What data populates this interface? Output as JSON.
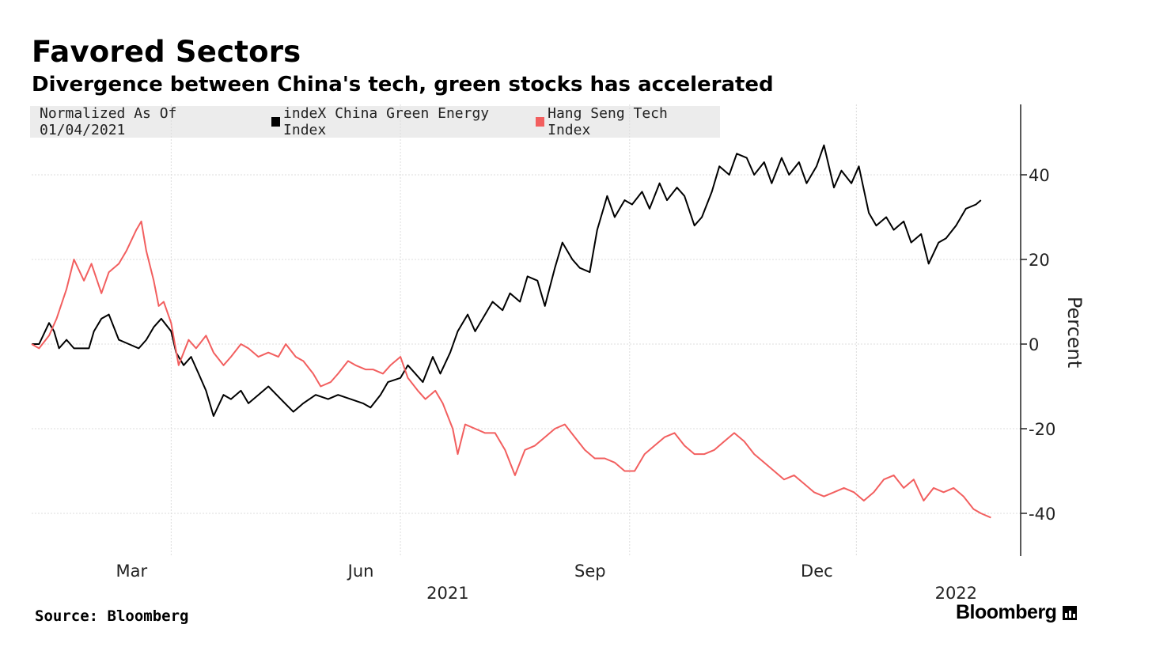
{
  "header": {
    "title": "Favored Sectors",
    "subtitle": "Divergence between China's tech, green stocks has accelerated"
  },
  "legend": {
    "note": "Normalized As Of 01/04/2021",
    "items": [
      {
        "label": "indeX China Green Energy Index",
        "color": "#000000"
      },
      {
        "label": "Hang Seng Tech Index",
        "color": "#f25f5f"
      }
    ]
  },
  "footer": {
    "source": "Source: Bloomberg",
    "brand": "Bloomberg"
  },
  "chart_data": {
    "type": "line",
    "ylabel": "Percent",
    "ylim": [
      -50,
      53
    ],
    "yticks": [
      40,
      20,
      0,
      -20,
      -40
    ],
    "ytick_labels": [
      "40",
      "20",
      "0",
      "-20",
      "-40"
    ],
    "x_range": [
      "2021-01-04",
      "2022-01-28"
    ],
    "xticks": [
      {
        "label": "Mar",
        "date": "2021-03-01"
      },
      {
        "label": "Jun",
        "date": "2021-06-01"
      },
      {
        "label": "Sep",
        "date": "2021-09-01"
      },
      {
        "label": "Dec",
        "date": "2021-12-01"
      }
    ],
    "year_labels": [
      {
        "label": "2021",
        "date": "2021-06-20"
      },
      {
        "label": "2022",
        "date": "2022-01-10"
      }
    ],
    "grid": true,
    "legend_position": "top-left",
    "series": [
      {
        "name": "indeX China Green Energy Index",
        "color": "#000000",
        "points": [
          [
            "2021-01-04",
            0
          ],
          [
            "2021-01-07",
            0
          ],
          [
            "2021-01-11",
            5
          ],
          [
            "2021-01-13",
            3
          ],
          [
            "2021-01-15",
            -1
          ],
          [
            "2021-01-18",
            1
          ],
          [
            "2021-01-21",
            -1
          ],
          [
            "2021-01-27",
            -1
          ],
          [
            "2021-01-29",
            3
          ],
          [
            "2021-02-01",
            6
          ],
          [
            "2021-02-04",
            7
          ],
          [
            "2021-02-08",
            1
          ],
          [
            "2021-02-12",
            0
          ],
          [
            "2021-02-16",
            -1
          ],
          [
            "2021-02-19",
            1
          ],
          [
            "2021-02-22",
            4
          ],
          [
            "2021-02-25",
            6
          ],
          [
            "2021-03-01",
            3
          ],
          [
            "2021-03-03",
            -2
          ],
          [
            "2021-03-06",
            -5
          ],
          [
            "2021-03-09",
            -3
          ],
          [
            "2021-03-12",
            -7
          ],
          [
            "2021-03-15",
            -11
          ],
          [
            "2021-03-18",
            -17
          ],
          [
            "2021-03-22",
            -12
          ],
          [
            "2021-03-25",
            -13
          ],
          [
            "2021-03-29",
            -11
          ],
          [
            "2021-04-01",
            -14
          ],
          [
            "2021-04-05",
            -12
          ],
          [
            "2021-04-09",
            -10
          ],
          [
            "2021-04-14",
            -13
          ],
          [
            "2021-04-19",
            -16
          ],
          [
            "2021-04-23",
            -14
          ],
          [
            "2021-04-28",
            -12
          ],
          [
            "2021-05-03",
            -13
          ],
          [
            "2021-05-07",
            -12
          ],
          [
            "2021-05-12",
            -13
          ],
          [
            "2021-05-17",
            -14
          ],
          [
            "2021-05-20",
            -15
          ],
          [
            "2021-05-24",
            -12
          ],
          [
            "2021-05-27",
            -9
          ],
          [
            "2021-06-01",
            -8
          ],
          [
            "2021-06-04",
            -5
          ],
          [
            "2021-06-07",
            -7
          ],
          [
            "2021-06-10",
            -9
          ],
          [
            "2021-06-14",
            -3
          ],
          [
            "2021-06-17",
            -7
          ],
          [
            "2021-06-21",
            -2
          ],
          [
            "2021-06-24",
            3
          ],
          [
            "2021-06-28",
            7
          ],
          [
            "2021-07-01",
            3
          ],
          [
            "2021-07-05",
            7
          ],
          [
            "2021-07-08",
            10
          ],
          [
            "2021-07-12",
            8
          ],
          [
            "2021-07-15",
            12
          ],
          [
            "2021-07-19",
            10
          ],
          [
            "2021-07-22",
            16
          ],
          [
            "2021-07-26",
            15
          ],
          [
            "2021-07-29",
            9
          ],
          [
            "2021-08-02",
            18
          ],
          [
            "2021-08-05",
            24
          ],
          [
            "2021-08-09",
            20
          ],
          [
            "2021-08-12",
            18
          ],
          [
            "2021-08-16",
            17
          ],
          [
            "2021-08-19",
            27
          ],
          [
            "2021-08-23",
            35
          ],
          [
            "2021-08-26",
            30
          ],
          [
            "2021-08-30",
            34
          ],
          [
            "2021-09-02",
            33
          ],
          [
            "2021-09-06",
            36
          ],
          [
            "2021-09-09",
            32
          ],
          [
            "2021-09-13",
            38
          ],
          [
            "2021-09-16",
            34
          ],
          [
            "2021-09-20",
            37
          ],
          [
            "2021-09-23",
            35
          ],
          [
            "2021-09-27",
            28
          ],
          [
            "2021-09-30",
            30
          ],
          [
            "2021-10-04",
            36
          ],
          [
            "2021-10-07",
            42
          ],
          [
            "2021-10-11",
            40
          ],
          [
            "2021-10-14",
            45
          ],
          [
            "2021-10-18",
            44
          ],
          [
            "2021-10-21",
            40
          ],
          [
            "2021-10-25",
            43
          ],
          [
            "2021-10-28",
            38
          ],
          [
            "2021-11-01",
            44
          ],
          [
            "2021-11-04",
            40
          ],
          [
            "2021-11-08",
            43
          ],
          [
            "2021-11-11",
            38
          ],
          [
            "2021-11-15",
            42
          ],
          [
            "2021-11-18",
            47
          ],
          [
            "2021-11-22",
            37
          ],
          [
            "2021-11-25",
            41
          ],
          [
            "2021-11-29",
            38
          ],
          [
            "2021-12-02",
            42
          ],
          [
            "2021-12-06",
            31
          ],
          [
            "2021-12-09",
            28
          ],
          [
            "2021-12-13",
            30
          ],
          [
            "2021-12-16",
            27
          ],
          [
            "2021-12-20",
            29
          ],
          [
            "2021-12-23",
            24
          ],
          [
            "2021-12-27",
            26
          ],
          [
            "2021-12-30",
            19
          ],
          [
            "2022-01-03",
            24
          ],
          [
            "2022-01-06",
            25
          ],
          [
            "2022-01-10",
            28
          ],
          [
            "2022-01-14",
            32
          ],
          [
            "2022-01-18",
            33
          ],
          [
            "2022-01-20",
            34
          ]
        ]
      },
      {
        "name": "Hang Seng Tech Index",
        "color": "#f25f5f",
        "points": [
          [
            "2021-01-04",
            0
          ],
          [
            "2021-01-07",
            -1
          ],
          [
            "2021-01-11",
            2
          ],
          [
            "2021-01-14",
            6
          ],
          [
            "2021-01-18",
            13
          ],
          [
            "2021-01-21",
            20
          ],
          [
            "2021-01-25",
            15
          ],
          [
            "2021-01-28",
            19
          ],
          [
            "2021-02-01",
            12
          ],
          [
            "2021-02-04",
            17
          ],
          [
            "2021-02-08",
            19
          ],
          [
            "2021-02-11",
            22
          ],
          [
            "2021-02-15",
            27
          ],
          [
            "2021-02-17",
            29
          ],
          [
            "2021-02-19",
            22
          ],
          [
            "2021-02-22",
            15
          ],
          [
            "2021-02-24",
            9
          ],
          [
            "2021-02-26",
            10
          ],
          [
            "2021-03-01",
            5
          ],
          [
            "2021-03-04",
            -5
          ],
          [
            "2021-03-08",
            1
          ],
          [
            "2021-03-11",
            -1
          ],
          [
            "2021-03-15",
            2
          ],
          [
            "2021-03-18",
            -2
          ],
          [
            "2021-03-22",
            -5
          ],
          [
            "2021-03-25",
            -3
          ],
          [
            "2021-03-29",
            0
          ],
          [
            "2021-04-01",
            -1
          ],
          [
            "2021-04-05",
            -3
          ],
          [
            "2021-04-09",
            -2
          ],
          [
            "2021-04-13",
            -3
          ],
          [
            "2021-04-16",
            0
          ],
          [
            "2021-04-20",
            -3
          ],
          [
            "2021-04-23",
            -4
          ],
          [
            "2021-04-27",
            -7
          ],
          [
            "2021-04-30",
            -10
          ],
          [
            "2021-05-04",
            -9
          ],
          [
            "2021-05-07",
            -7
          ],
          [
            "2021-05-11",
            -4
          ],
          [
            "2021-05-14",
            -5
          ],
          [
            "2021-05-18",
            -6
          ],
          [
            "2021-05-21",
            -6
          ],
          [
            "2021-05-25",
            -7
          ],
          [
            "2021-05-28",
            -5
          ],
          [
            "2021-06-01",
            -3
          ],
          [
            "2021-06-04",
            -8
          ],
          [
            "2021-06-08",
            -11
          ],
          [
            "2021-06-11",
            -13
          ],
          [
            "2021-06-15",
            -11
          ],
          [
            "2021-06-18",
            -14
          ],
          [
            "2021-06-22",
            -20
          ],
          [
            "2021-06-24",
            -26
          ],
          [
            "2021-06-27",
            -19
          ],
          [
            "2021-07-01",
            -20
          ],
          [
            "2021-07-05",
            -21
          ],
          [
            "2021-07-09",
            -21
          ],
          [
            "2021-07-13",
            -25
          ],
          [
            "2021-07-17",
            -31
          ],
          [
            "2021-07-21",
            -25
          ],
          [
            "2021-07-25",
            -24
          ],
          [
            "2021-07-29",
            -22
          ],
          [
            "2021-08-02",
            -20
          ],
          [
            "2021-08-06",
            -19
          ],
          [
            "2021-08-10",
            -22
          ],
          [
            "2021-08-14",
            -25
          ],
          [
            "2021-08-18",
            -27
          ],
          [
            "2021-08-22",
            -27
          ],
          [
            "2021-08-26",
            -28
          ],
          [
            "2021-08-30",
            -30
          ],
          [
            "2021-09-03",
            -30
          ],
          [
            "2021-09-07",
            -26
          ],
          [
            "2021-09-11",
            -24
          ],
          [
            "2021-09-15",
            -22
          ],
          [
            "2021-09-19",
            -21
          ],
          [
            "2021-09-23",
            -24
          ],
          [
            "2021-09-27",
            -26
          ],
          [
            "2021-10-01",
            -26
          ],
          [
            "2021-10-05",
            -25
          ],
          [
            "2021-10-09",
            -23
          ],
          [
            "2021-10-13",
            -21
          ],
          [
            "2021-10-17",
            -23
          ],
          [
            "2021-10-21",
            -26
          ],
          [
            "2021-10-25",
            -28
          ],
          [
            "2021-10-29",
            -30
          ],
          [
            "2021-11-02",
            -32
          ],
          [
            "2021-11-06",
            -31
          ],
          [
            "2021-11-10",
            -33
          ],
          [
            "2021-11-14",
            -35
          ],
          [
            "2021-11-18",
            -36
          ],
          [
            "2021-11-22",
            -35
          ],
          [
            "2021-11-26",
            -34
          ],
          [
            "2021-11-30",
            -35
          ],
          [
            "2021-12-04",
            -37
          ],
          [
            "2021-12-08",
            -35
          ],
          [
            "2021-12-12",
            -32
          ],
          [
            "2021-12-16",
            -31
          ],
          [
            "2021-12-20",
            -34
          ],
          [
            "2021-12-24",
            -32
          ],
          [
            "2021-12-28",
            -37
          ],
          [
            "2022-01-01",
            -34
          ],
          [
            "2022-01-05",
            -35
          ],
          [
            "2022-01-09",
            -34
          ],
          [
            "2022-01-13",
            -36
          ],
          [
            "2022-01-17",
            -39
          ],
          [
            "2022-01-20",
            -40
          ],
          [
            "2022-01-24",
            -41
          ]
        ]
      }
    ]
  }
}
